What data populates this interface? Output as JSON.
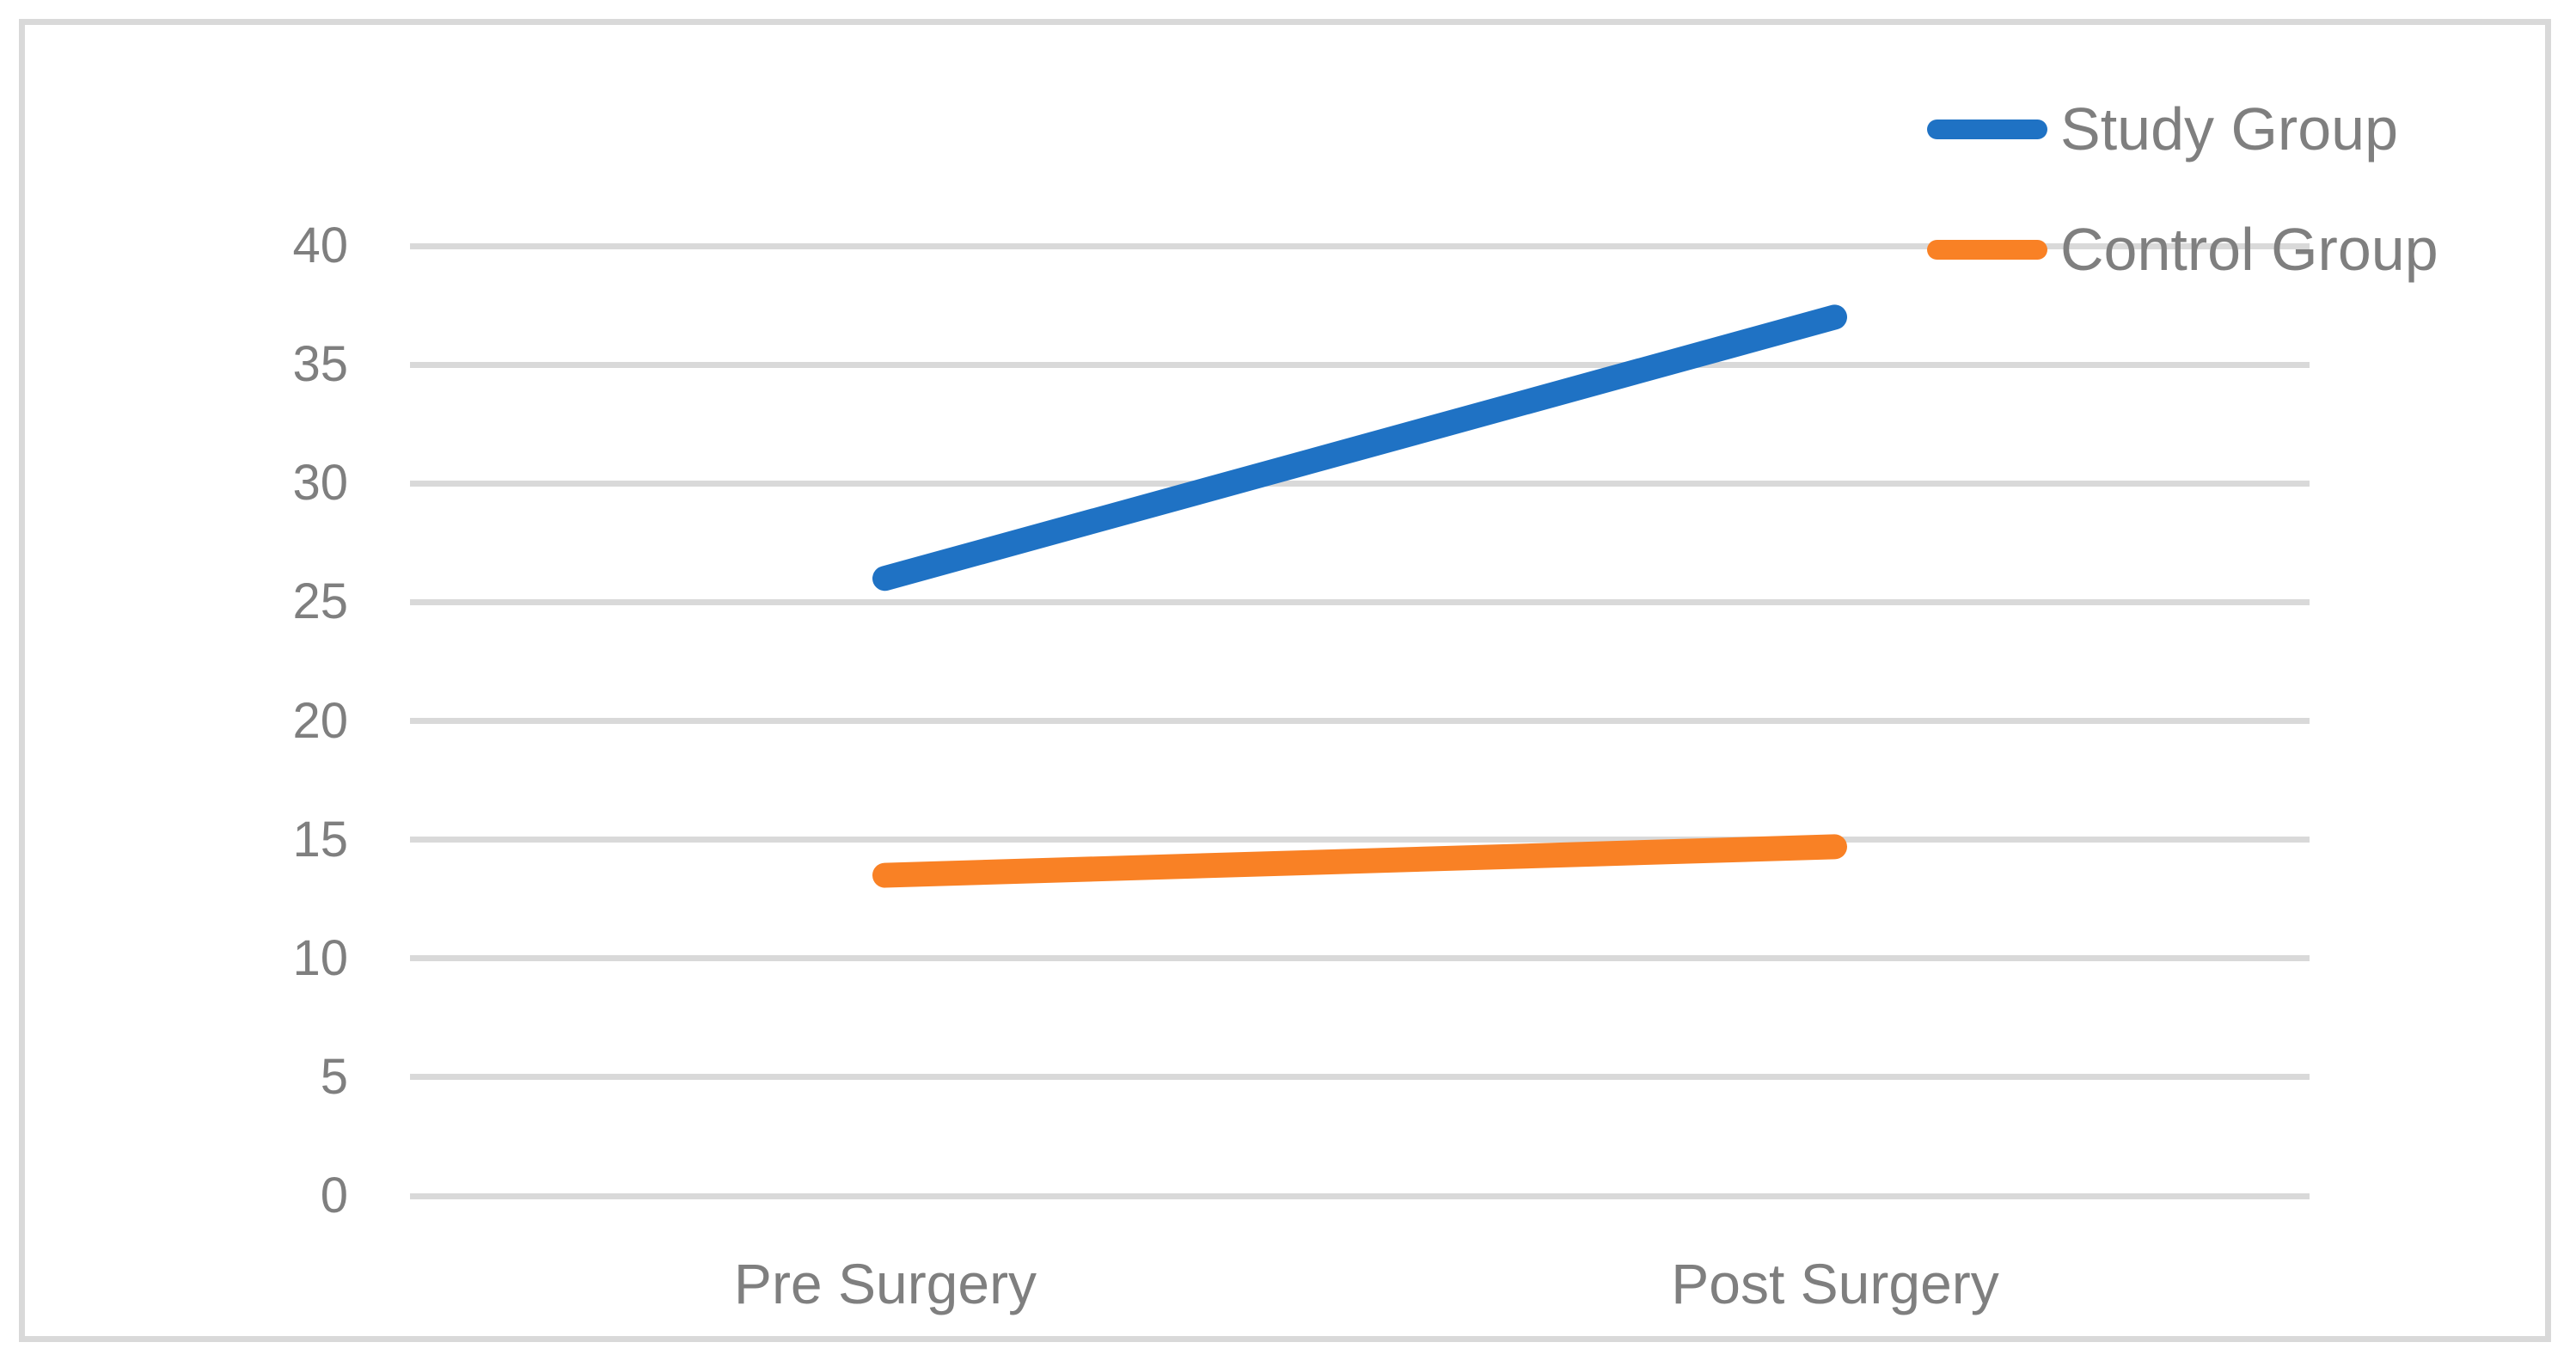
{
  "chart_data": {
    "type": "line",
    "categories": [
      "Pre Surgery",
      "Post Surgery"
    ],
    "series": [
      {
        "name": "Study Group",
        "color": "#1F72C4",
        "values": [
          26,
          37
        ]
      },
      {
        "name": "Control Group",
        "color": "#F98125",
        "values": [
          13.5,
          14.7
        ]
      }
    ],
    "title": "",
    "xlabel": "",
    "ylabel": "",
    "ylim": [
      0,
      40
    ],
    "yticks": [
      0,
      5,
      10,
      15,
      20,
      25,
      30,
      35,
      40
    ],
    "grid": true,
    "legend_position": "top-right"
  },
  "colors": {
    "background": "#FFFFFF",
    "frame_border": "#D9D9D9",
    "gridline": "#D9D9D9",
    "axis_text": "#7F7F7F",
    "legend_text": "#7F7F7F"
  }
}
